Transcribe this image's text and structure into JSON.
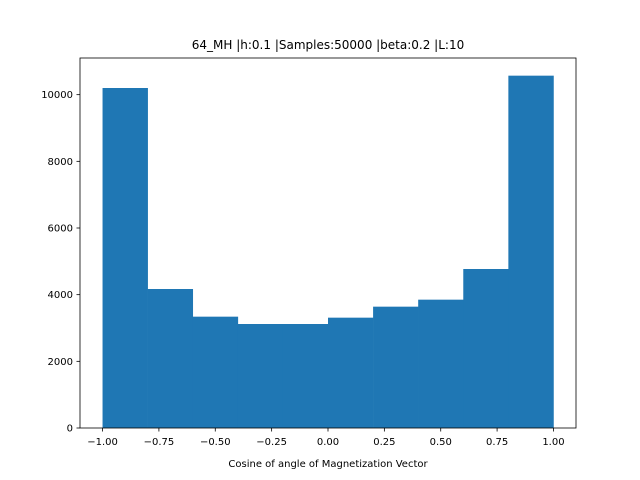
{
  "chart_data": {
    "type": "bar",
    "subtype": "histogram",
    "title": "64_MH |h:0.1 |Samples:50000 |beta:0.2 |L:10",
    "xlabel": "Cosine of angle of Magnetization Vector",
    "ylabel": "",
    "bin_edges": [
      -1.0,
      -0.8,
      -0.6,
      -0.4,
      -0.2,
      0.0,
      0.2,
      0.4,
      0.6,
      0.8,
      1.0
    ],
    "values": [
      10200,
      4170,
      3340,
      3120,
      3120,
      3310,
      3640,
      3850,
      4770,
      10570
    ],
    "xlim": [
      -1.1,
      1.1
    ],
    "ylim": [
      0,
      11100
    ],
    "xticks": [
      -1.0,
      -0.75,
      -0.5,
      -0.25,
      0.0,
      0.25,
      0.5,
      0.75,
      1.0
    ],
    "xtick_labels": [
      "−1.00",
      "−0.75",
      "−0.50",
      "−0.25",
      "0.00",
      "0.25",
      "0.50",
      "0.75",
      "1.00"
    ],
    "yticks": [
      0,
      2000,
      4000,
      6000,
      8000,
      10000
    ],
    "ytick_labels": [
      "0",
      "2000",
      "4000",
      "6000",
      "8000",
      "10000"
    ],
    "grid": false,
    "legend": "none",
    "bar_color": "#1f77b4"
  }
}
